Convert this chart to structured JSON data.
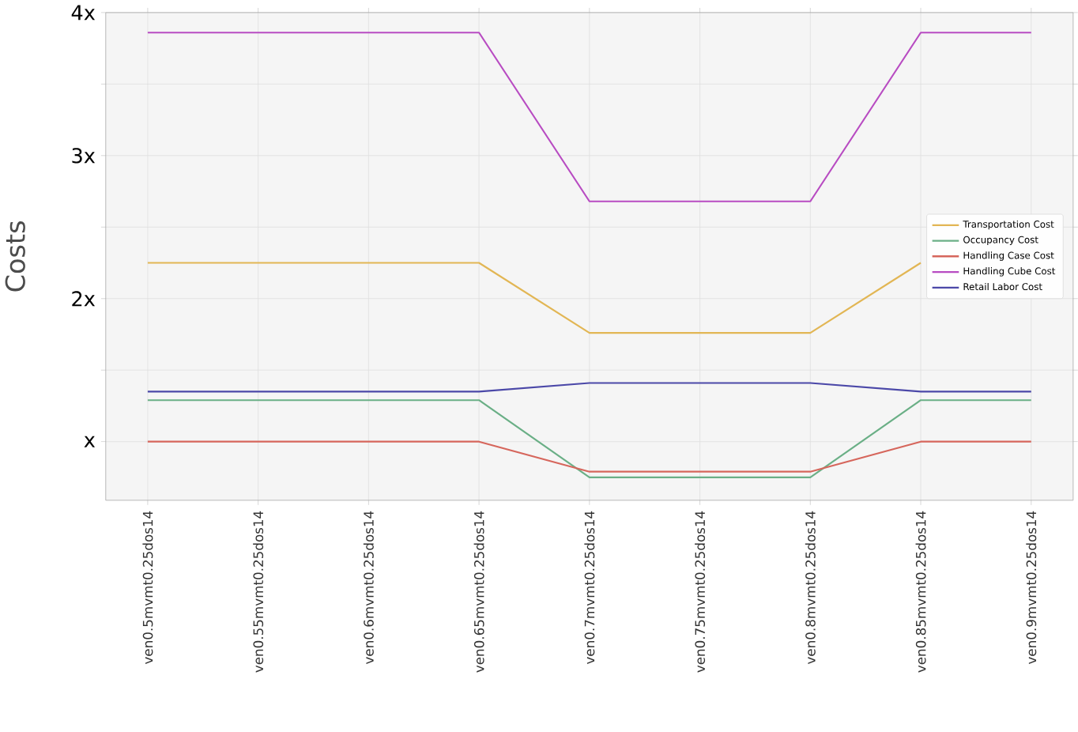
{
  "chart_data": {
    "type": "line",
    "ylabel": "Costs",
    "categories": [
      "ven0.5mvmt0.25dos14",
      "ven0.55mvmt0.25dos14",
      "ven0.6mvmt0.25dos14",
      "ven0.65mvmt0.25dos14",
      "ven0.7mvmt0.25dos14",
      "ven0.75mvmt0.25dos14",
      "ven0.8mvmt0.25dos14",
      "ven0.85mvmt0.25dos14",
      "ven0.9mvmt0.25dos14"
    ],
    "series": [
      {
        "name": "Transportation Cost",
        "color": "#e2b654",
        "values": [
          2.25,
          2.25,
          2.25,
          2.25,
          1.76,
          1.76,
          1.76,
          2.25,
          null
        ]
      },
      {
        "name": "Occupancy Cost",
        "color": "#6aaf86",
        "values": [
          1.29,
          1.29,
          1.29,
          1.29,
          0.75,
          0.75,
          0.75,
          1.29,
          1.29
        ]
      },
      {
        "name": "Handling Case Cost",
        "color": "#d6665c",
        "values": [
          1.0,
          1.0,
          1.0,
          1.0,
          0.79,
          0.79,
          0.79,
          1.0,
          1.0
        ]
      },
      {
        "name": "Handling Cube Cost",
        "color": "#b84cc2",
        "values": [
          3.86,
          3.86,
          3.86,
          3.86,
          2.68,
          2.68,
          2.68,
          3.86,
          3.86
        ]
      },
      {
        "name": "Retail Labor Cost",
        "color": "#4b48a8",
        "values": [
          1.35,
          1.35,
          1.35,
          1.35,
          1.41,
          1.41,
          1.41,
          1.35,
          1.35
        ]
      }
    ],
    "ylim": [
      0.59,
      4.0
    ],
    "yticks": [
      {
        "value": 1,
        "label": "x"
      },
      {
        "value": 1.5,
        "label": null
      },
      {
        "value": 2,
        "label": "2x"
      },
      {
        "value": 2.5,
        "label": null
      },
      {
        "value": 3,
        "label": "3x"
      },
      {
        "value": 3.5,
        "label": null
      },
      {
        "value": 4,
        "label": "4x"
      }
    ],
    "grid": true,
    "legend": "right",
    "marker": "none",
    "line_style": "solid"
  }
}
